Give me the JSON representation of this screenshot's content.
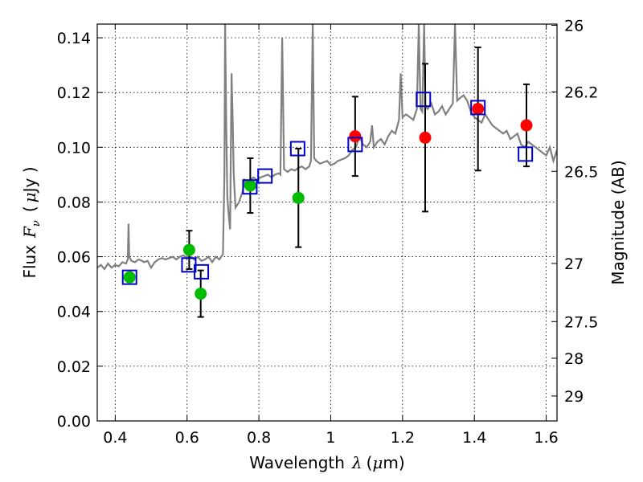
{
  "chart_data": {
    "type": "scatter",
    "xlabel_prefix": "Wavelength",
    "xlabel_symbol": "λ",
    "xlabel_unit_open": "(",
    "xlabel_unit_mu": "μ",
    "xlabel_unit_rest": "m)",
    "ylabel_prefix": "Flux",
    "ylabel_symbol": "F",
    "ylabel_sub": "ν",
    "ylabel_unit_open": "(",
    "ylabel_unit_mu": "μ",
    "ylabel_unit_rest": "Jy )",
    "y2label": "Magnitude (AB)",
    "xlim": [
      0.35,
      1.63
    ],
    "ylim": [
      0.0,
      0.145
    ],
    "xticks": [
      0.4,
      0.6,
      0.8,
      1.0,
      1.2,
      1.4,
      1.6
    ],
    "xtick_labels": [
      "0.4",
      "0.6",
      "0.8",
      "1",
      "1.2",
      "1.4",
      "1.6"
    ],
    "yticks": [
      0.0,
      0.02,
      0.04,
      0.06,
      0.08,
      0.1,
      0.12,
      0.14
    ],
    "ytick_labels": [
      "0.00",
      "0.02",
      "0.04",
      "0.06",
      "0.08",
      "0.10",
      "0.12",
      "0.14"
    ],
    "y2ticks": [
      26,
      26.2,
      26.5,
      27,
      27.5,
      28,
      29
    ],
    "y2tick_labels": [
      "26",
      "26.2",
      "26.5",
      "27",
      "27.5",
      "28",
      "29"
    ],
    "grid": true,
    "colors": {
      "spectrum": "#808080",
      "model": "#0000cc",
      "optical": "#00bb00",
      "nir": "#ff0000",
      "errorbar": "#000000"
    },
    "spectrum": [
      [
        0.35,
        0.056
      ],
      [
        0.36,
        0.057
      ],
      [
        0.37,
        0.0555
      ],
      [
        0.38,
        0.0575
      ],
      [
        0.39,
        0.056
      ],
      [
        0.4,
        0.057
      ],
      [
        0.41,
        0.0565
      ],
      [
        0.42,
        0.058
      ],
      [
        0.43,
        0.0575
      ],
      [
        0.435,
        0.059
      ],
      [
        0.437,
        0.072
      ],
      [
        0.439,
        0.06
      ],
      [
        0.445,
        0.0585
      ],
      [
        0.455,
        0.058
      ],
      [
        0.465,
        0.059
      ],
      [
        0.475,
        0.0585
      ],
      [
        0.48,
        0.058
      ],
      [
        0.49,
        0.0585
      ],
      [
        0.5,
        0.056
      ],
      [
        0.51,
        0.058
      ],
      [
        0.52,
        0.059
      ],
      [
        0.53,
        0.0595
      ],
      [
        0.54,
        0.059
      ],
      [
        0.55,
        0.0595
      ],
      [
        0.56,
        0.06
      ],
      [
        0.57,
        0.059
      ],
      [
        0.58,
        0.06
      ],
      [
        0.59,
        0.0605
      ],
      [
        0.6,
        0.0595
      ],
      [
        0.61,
        0.06
      ],
      [
        0.62,
        0.059
      ],
      [
        0.63,
        0.06
      ],
      [
        0.64,
        0.0585
      ],
      [
        0.65,
        0.059
      ],
      [
        0.66,
        0.06
      ],
      [
        0.67,
        0.058
      ],
      [
        0.68,
        0.06
      ],
      [
        0.69,
        0.059
      ],
      [
        0.7,
        0.061
      ],
      [
        0.704,
        0.09
      ],
      [
        0.706,
        0.145
      ],
      [
        0.709,
        0.11
      ],
      [
        0.712,
        0.082
      ],
      [
        0.716,
        0.075
      ],
      [
        0.72,
        0.07
      ],
      [
        0.724,
        0.127
      ],
      [
        0.727,
        0.11
      ],
      [
        0.73,
        0.09
      ],
      [
        0.735,
        0.078
      ],
      [
        0.745,
        0.08
      ],
      [
        0.755,
        0.084
      ],
      [
        0.76,
        0.088
      ],
      [
        0.765,
        0.087
      ],
      [
        0.775,
        0.088
      ],
      [
        0.785,
        0.089
      ],
      [
        0.795,
        0.088
      ],
      [
        0.805,
        0.089
      ],
      [
        0.815,
        0.0895
      ],
      [
        0.825,
        0.09
      ],
      [
        0.835,
        0.089
      ],
      [
        0.845,
        0.09
      ],
      [
        0.855,
        0.0905
      ],
      [
        0.86,
        0.09
      ],
      [
        0.865,
        0.14
      ],
      [
        0.87,
        0.092
      ],
      [
        0.88,
        0.091
      ],
      [
        0.89,
        0.092
      ],
      [
        0.9,
        0.0915
      ],
      [
        0.91,
        0.0925
      ],
      [
        0.92,
        0.093
      ],
      [
        0.93,
        0.092
      ],
      [
        0.94,
        0.093
      ],
      [
        0.945,
        0.095
      ],
      [
        0.95,
        0.145
      ],
      [
        0.954,
        0.096
      ],
      [
        0.96,
        0.095
      ],
      [
        0.97,
        0.094
      ],
      [
        0.98,
        0.0945
      ],
      [
        0.99,
        0.095
      ],
      [
        1.0,
        0.0935
      ],
      [
        1.01,
        0.094
      ],
      [
        1.02,
        0.095
      ],
      [
        1.03,
        0.0955
      ],
      [
        1.04,
        0.096
      ],
      [
        1.05,
        0.097
      ],
      [
        1.06,
        0.099
      ],
      [
        1.07,
        0.1
      ],
      [
        1.08,
        0.104
      ],
      [
        1.09,
        0.101
      ],
      [
        1.1,
        0.1
      ],
      [
        1.11,
        0.102
      ],
      [
        1.115,
        0.108
      ],
      [
        1.12,
        0.1
      ],
      [
        1.13,
        0.102
      ],
      [
        1.14,
        0.103
      ],
      [
        1.15,
        0.101
      ],
      [
        1.16,
        0.104
      ],
      [
        1.17,
        0.106
      ],
      [
        1.18,
        0.105
      ],
      [
        1.19,
        0.11
      ],
      [
        1.195,
        0.127
      ],
      [
        1.2,
        0.111
      ],
      [
        1.21,
        0.112
      ],
      [
        1.22,
        0.111
      ],
      [
        1.23,
        0.11
      ],
      [
        1.24,
        0.114
      ],
      [
        1.245,
        0.145
      ],
      [
        1.25,
        0.114
      ],
      [
        1.255,
        0.113
      ],
      [
        1.26,
        0.145
      ],
      [
        1.264,
        0.115
      ],
      [
        1.27,
        0.114
      ],
      [
        1.28,
        0.116
      ],
      [
        1.29,
        0.112
      ],
      [
        1.3,
        0.113
      ],
      [
        1.31,
        0.115
      ],
      [
        1.32,
        0.112
      ],
      [
        1.33,
        0.114
      ],
      [
        1.34,
        0.116
      ],
      [
        1.346,
        0.145
      ],
      [
        1.352,
        0.117
      ],
      [
        1.36,
        0.118
      ],
      [
        1.37,
        0.119
      ],
      [
        1.38,
        0.117
      ],
      [
        1.39,
        0.113
      ],
      [
        1.4,
        0.111
      ],
      [
        1.41,
        0.11
      ],
      [
        1.42,
        0.109
      ],
      [
        1.43,
        0.112
      ],
      [
        1.44,
        0.11
      ],
      [
        1.45,
        0.108
      ],
      [
        1.46,
        0.107
      ],
      [
        1.47,
        0.106
      ],
      [
        1.48,
        0.105
      ],
      [
        1.49,
        0.106
      ],
      [
        1.5,
        0.103
      ],
      [
        1.51,
        0.104
      ],
      [
        1.52,
        0.105
      ],
      [
        1.53,
        0.101
      ],
      [
        1.54,
        0.1
      ],
      [
        1.55,
        0.102
      ],
      [
        1.56,
        0.101
      ],
      [
        1.57,
        0.1
      ],
      [
        1.58,
        0.099
      ],
      [
        1.59,
        0.098
      ],
      [
        1.6,
        0.097
      ],
      [
        1.61,
        0.1
      ],
      [
        1.62,
        0.095
      ],
      [
        1.63,
        0.099
      ]
    ],
    "model_points": [
      {
        "x": 0.44,
        "y": 0.0525
      },
      {
        "x": 0.605,
        "y": 0.057
      },
      {
        "x": 0.64,
        "y": 0.0545
      },
      {
        "x": 0.775,
        "y": 0.0855
      },
      {
        "x": 0.817,
        "y": 0.0895
      },
      {
        "x": 0.908,
        "y": 0.0995
      },
      {
        "x": 1.068,
        "y": 0.101
      },
      {
        "x": 1.258,
        "y": 0.1175
      },
      {
        "x": 1.41,
        "y": 0.1145
      },
      {
        "x": 1.542,
        "y": 0.0975
      }
    ],
    "optical_points": [
      {
        "x": 0.44,
        "y": 0.0525,
        "yerr": null
      },
      {
        "x": 0.606,
        "y": 0.0625,
        "yerr": 0.007
      },
      {
        "x": 0.638,
        "y": 0.0465,
        "yerr": 0.0085
      },
      {
        "x": 0.776,
        "y": 0.086,
        "yerr": 0.01
      },
      {
        "x": 0.91,
        "y": 0.0815,
        "yerr": 0.018
      }
    ],
    "nir_points": [
      {
        "x": 1.068,
        "y": 0.104,
        "yerr": 0.0145
      },
      {
        "x": 1.263,
        "y": 0.1035,
        "yerr": 0.027
      },
      {
        "x": 1.41,
        "y": 0.114,
        "yerr": 0.0225
      },
      {
        "x": 1.545,
        "y": 0.108,
        "yerr": 0.015
      }
    ]
  }
}
